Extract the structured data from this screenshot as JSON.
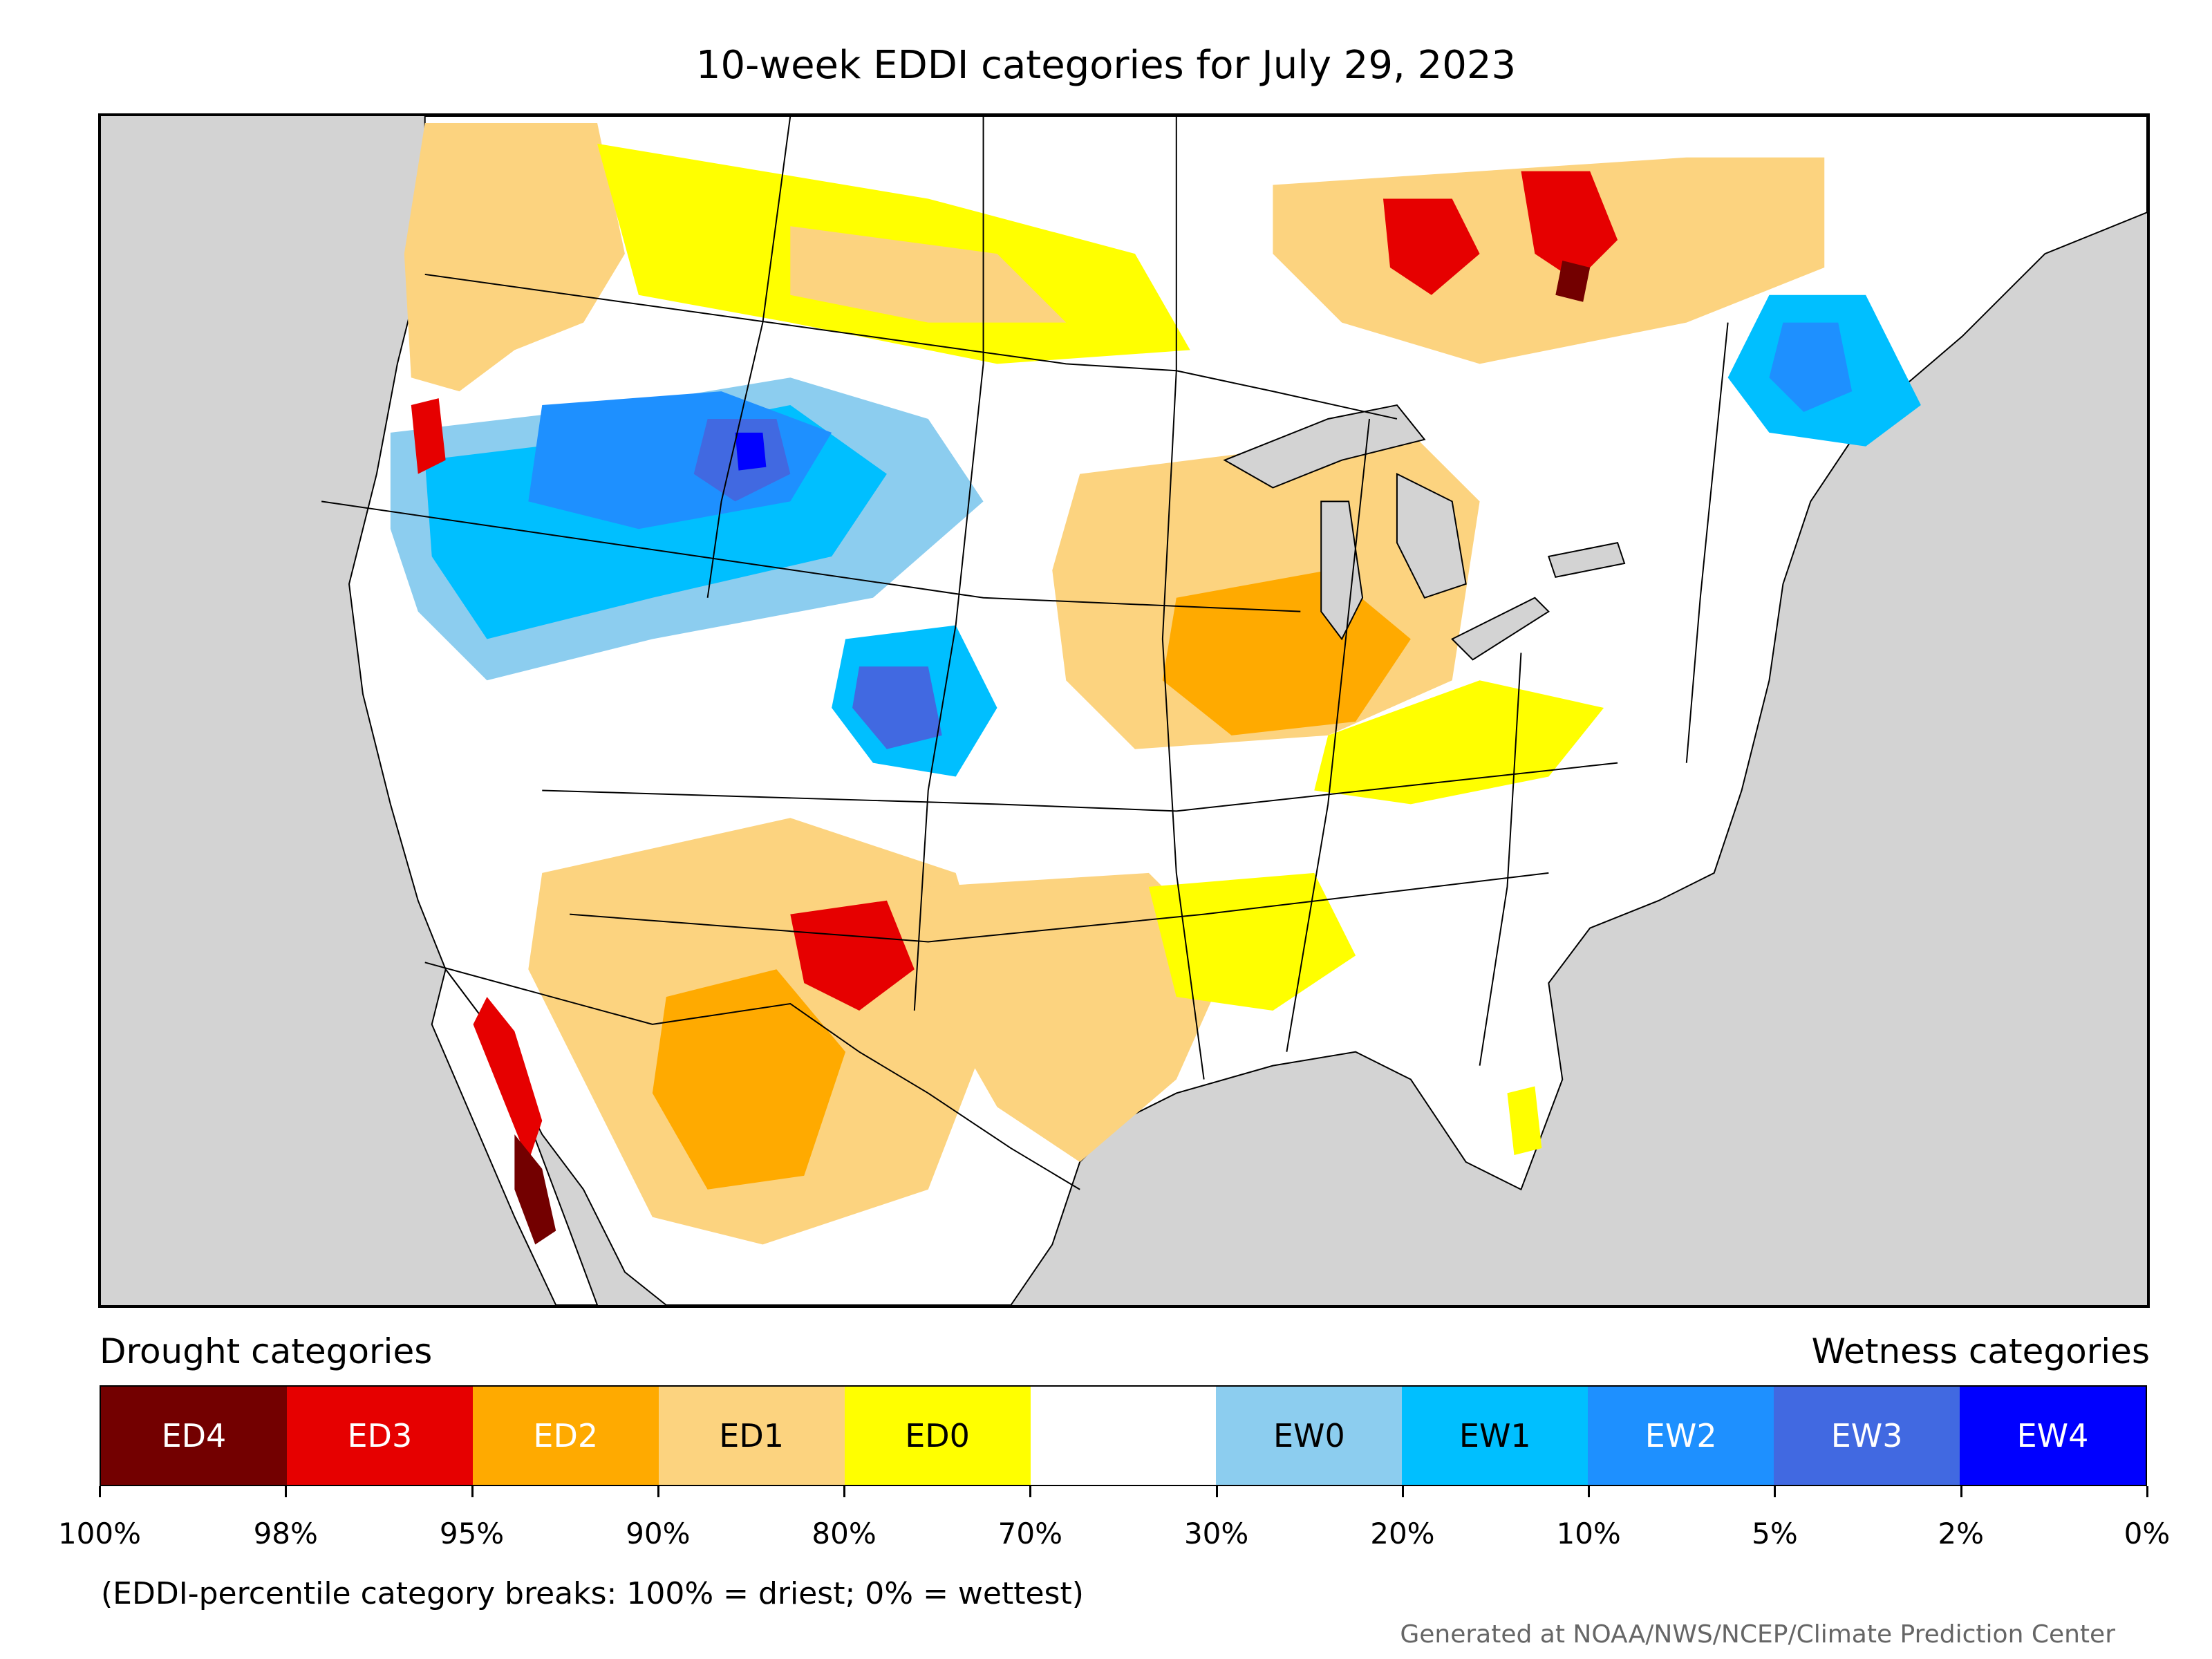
{
  "title": "10-week EDDI categories for July 29, 2023",
  "legend": {
    "drought_heading": "Drought categories",
    "wetness_heading": "Wetness categories",
    "categories": [
      {
        "label": "ED4",
        "color": "#730000",
        "text_color": "#ffffff"
      },
      {
        "label": "ED3",
        "color": "#e60000",
        "text_color": "#ffffff"
      },
      {
        "label": "ED2",
        "color": "#ffaa00",
        "text_color": "#ffffff"
      },
      {
        "label": "ED1",
        "color": "#fcd37f",
        "text_color": "#000000"
      },
      {
        "label": "ED0",
        "color": "#ffff00",
        "text_color": "#000000"
      },
      {
        "label": "",
        "color": "#ffffff",
        "text_color": "#000000"
      },
      {
        "label": "EW0",
        "color": "#8ccdef",
        "text_color": "#000000"
      },
      {
        "label": "EW1",
        "color": "#00bfff",
        "text_color": "#000000"
      },
      {
        "label": "EW2",
        "color": "#1e90ff",
        "text_color": "#ffffff"
      },
      {
        "label": "EW3",
        "color": "#4169e1",
        "text_color": "#ffffff"
      },
      {
        "label": "EW4",
        "color": "#0000ff",
        "text_color": "#ffffff"
      }
    ],
    "tick_labels": [
      "100%",
      "98%",
      "95%",
      "90%",
      "80%",
      "70%",
      "30%",
      "20%",
      "10%",
      "5%",
      "2%",
      "0%"
    ]
  },
  "note": "(EDDI-percentile category breaks: 100% = driest; 0% = wettest)",
  "credit": "Generated at NOAA/NWS/NCEP/Climate Prediction Center",
  "colors": {
    "ocean_background": "#d3d3d3",
    "land_default": "#ffffff",
    "boundary_lines": "#000000"
  }
}
